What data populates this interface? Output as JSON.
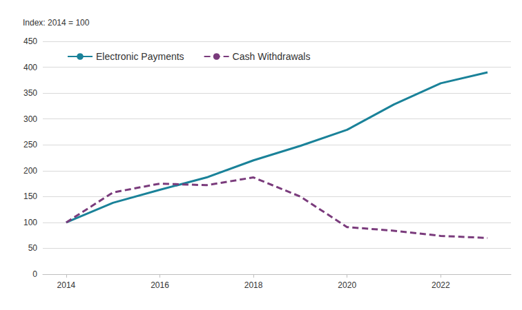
{
  "chart_data": {
    "type": "line",
    "ylabel": "Index: 2014 = 100",
    "x": [
      2014,
      2015,
      2016,
      2017,
      2018,
      2019,
      2020,
      2021,
      2022,
      2023
    ],
    "series": [
      {
        "name": "Electronic Payments",
        "color": "#1a8299",
        "line_style": "solid",
        "values": [
          100,
          138,
          163,
          187,
          220,
          248,
          279,
          328,
          369,
          390
        ]
      },
      {
        "name": "Cash Withdrawals",
        "color": "#7a3b7c",
        "line_style": "dashed",
        "values": [
          100,
          158,
          175,
          172,
          187,
          150,
          91,
          84,
          74,
          70
        ]
      }
    ],
    "xlim": [
      2013.5,
      2023.5
    ],
    "xticks": [
      2014,
      2016,
      2018,
      2020,
      2022
    ],
    "ylim": [
      0,
      450
    ],
    "yticks": [
      0,
      50,
      100,
      150,
      200,
      250,
      300,
      350,
      400,
      450
    ],
    "grid": true,
    "legend": "upper left",
    "marker": "none"
  }
}
